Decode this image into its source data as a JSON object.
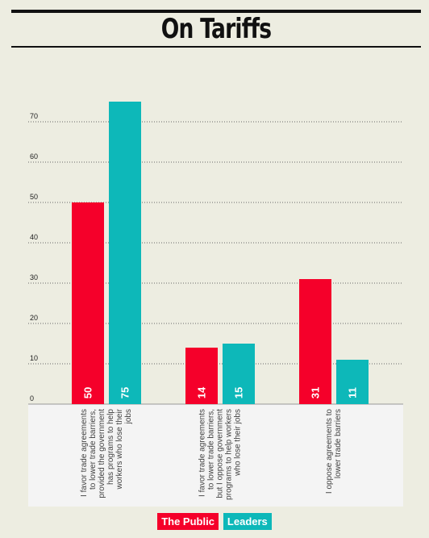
{
  "title": "On Tariffs",
  "chart_data": {
    "type": "bar",
    "title": "On Tariffs",
    "categories": [
      "I favor trade agreements to lower trade barriers, provided the government has programs to help workers who lose their jobs",
      "I favor trade agreements to lower trade barriers, but I oppose government programs to help workers who lose their jobs",
      "I oppose agreements to lower trade barriers"
    ],
    "category_lines": [
      [
        "I favor trade agreements",
        "to lower trade barriers,",
        "provided the government",
        "has programs to help",
        "workers who lose their",
        "jobs"
      ],
      [
        "I favor trade agreements",
        "to lower trade barriers,",
        "but I oppose government",
        "programs to help workers",
        "who lose their jobs"
      ],
      [
        "I oppose agreements to",
        "lower trade barriers"
      ]
    ],
    "series": [
      {
        "name": "The Public",
        "color": "#f5002a",
        "values": [
          50,
          14,
          31
        ]
      },
      {
        "name": "Leaders",
        "color": "#0db8b9",
        "values": [
          75,
          15,
          11
        ]
      }
    ],
    "yticks": [
      0,
      10,
      20,
      30,
      40,
      50,
      60,
      70
    ],
    "ylim": [
      0,
      80
    ],
    "grid": true,
    "legend_position": "bottom-center",
    "xlabel": "",
    "ylabel": ""
  }
}
